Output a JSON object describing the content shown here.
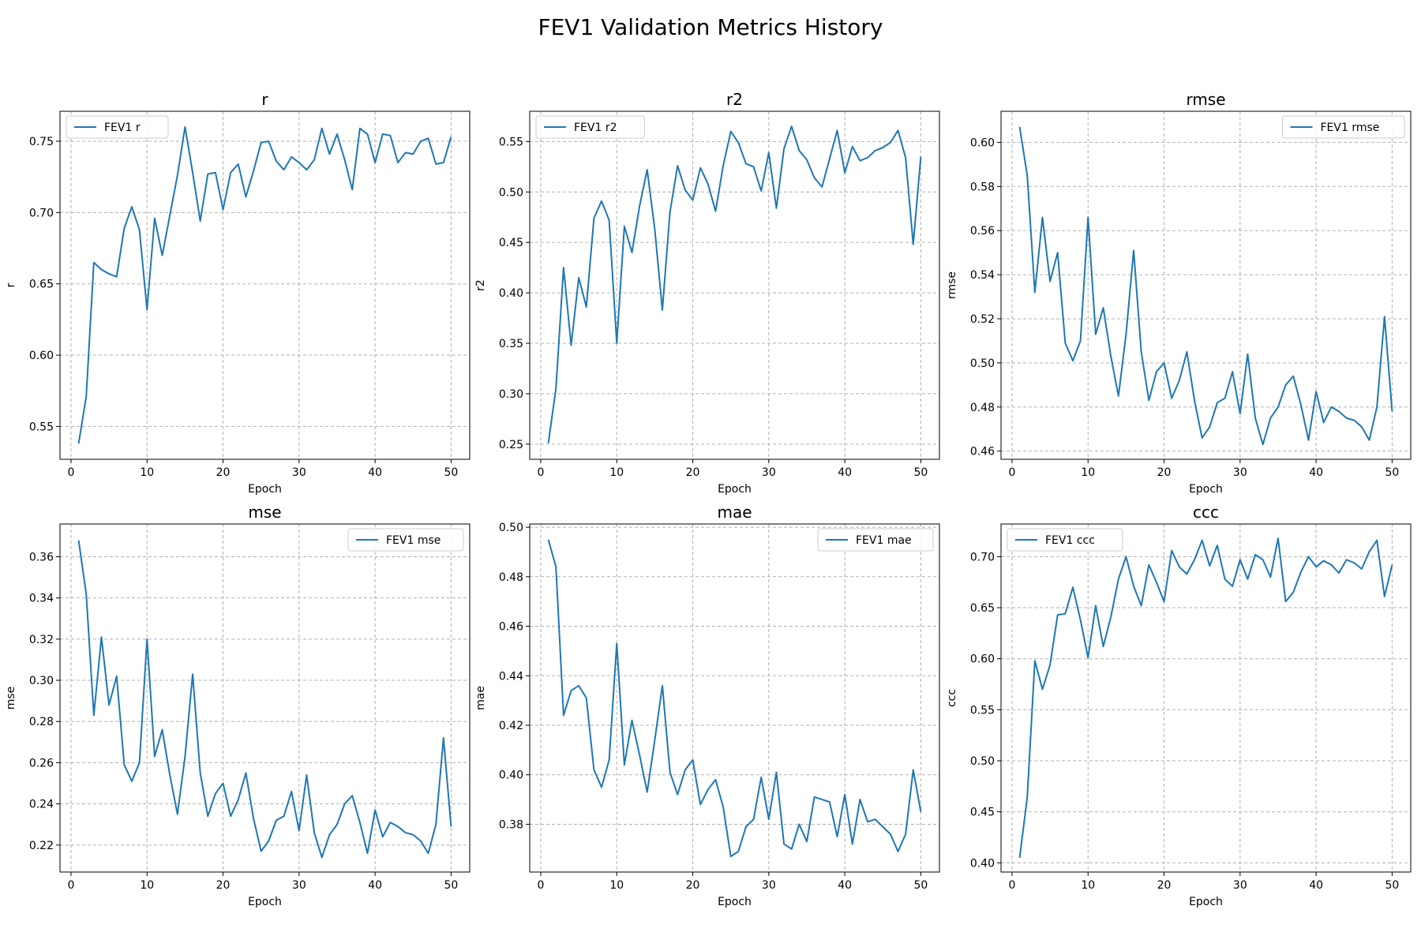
{
  "figure": {
    "title": "FEV1 Validation Metrics History"
  },
  "style": {
    "line_color": "#1f77b4",
    "grid_color": "#b0b0b0",
    "grid": true
  },
  "chart_data": [
    {
      "type": "line",
      "title": "r",
      "xlabel": "Epoch",
      "ylabel": "r",
      "xlim": [
        -1.45,
        52.45
      ],
      "ylim": [
        0.527,
        0.771
      ],
      "xticks": [
        0,
        10,
        20,
        30,
        40,
        50
      ],
      "yticks": [
        0.55,
        0.6,
        0.65,
        0.7,
        0.75
      ],
      "ytick_labels": [
        "0.55",
        "0.60",
        "0.65",
        "0.70",
        "0.75"
      ],
      "legend": "upper-left",
      "series": [
        {
          "name": "FEV1 r",
          "x_start": 1,
          "values": [
            0.538,
            0.571,
            0.665,
            0.66,
            0.657,
            0.655,
            0.689,
            0.704,
            0.688,
            0.632,
            0.696,
            0.67,
            0.698,
            0.726,
            0.76,
            0.728,
            0.694,
            0.727,
            0.728,
            0.702,
            0.728,
            0.734,
            0.711,
            0.729,
            0.749,
            0.75,
            0.736,
            0.73,
            0.739,
            0.735,
            0.73,
            0.737,
            0.759,
            0.741,
            0.755,
            0.737,
            0.716,
            0.759,
            0.755,
            0.735,
            0.755,
            0.754,
            0.735,
            0.742,
            0.741,
            0.75,
            0.752,
            0.734,
            0.735,
            0.753
          ]
        }
      ]
    },
    {
      "type": "line",
      "title": "r2",
      "xlabel": "Epoch",
      "ylabel": "r2",
      "xlim": [
        -1.45,
        52.45
      ],
      "ylim": [
        0.235,
        0.58
      ],
      "xticks": [
        0,
        10,
        20,
        30,
        40,
        50
      ],
      "yticks": [
        0.25,
        0.3,
        0.35,
        0.4,
        0.45,
        0.5,
        0.55
      ],
      "ytick_labels": [
        "0.25",
        "0.30",
        "0.35",
        "0.40",
        "0.45",
        "0.50",
        "0.55"
      ],
      "legend": "upper-left",
      "series": [
        {
          "name": "FEV1 r2",
          "x_start": 1,
          "values": [
            0.251,
            0.305,
            0.425,
            0.348,
            0.415,
            0.386,
            0.474,
            0.491,
            0.472,
            0.35,
            0.466,
            0.44,
            0.486,
            0.522,
            0.463,
            0.383,
            0.48,
            0.526,
            0.502,
            0.492,
            0.524,
            0.508,
            0.481,
            0.526,
            0.56,
            0.549,
            0.528,
            0.525,
            0.501,
            0.539,
            0.484,
            0.543,
            0.565,
            0.541,
            0.532,
            0.514,
            0.505,
            0.533,
            0.561,
            0.519,
            0.545,
            0.531,
            0.534,
            0.541,
            0.544,
            0.549,
            0.561,
            0.534,
            0.448,
            0.535
          ]
        }
      ]
    },
    {
      "type": "line",
      "title": "rmse",
      "xlabel": "Epoch",
      "ylabel": "rmse",
      "xlim": [
        -1.45,
        52.45
      ],
      "ylim": [
        0.4563,
        0.6141
      ],
      "xticks": [
        0,
        10,
        20,
        30,
        40,
        50
      ],
      "yticks": [
        0.46,
        0.48,
        0.5,
        0.52,
        0.54,
        0.56,
        0.58,
        0.6
      ],
      "ytick_labels": [
        "0.46",
        "0.48",
        "0.50",
        "0.52",
        "0.54",
        "0.56",
        "0.58",
        "0.60"
      ],
      "legend": "upper-right",
      "series": [
        {
          "name": "FEV1 rmse",
          "x_start": 1,
          "values": [
            0.607,
            0.585,
            0.532,
            0.566,
            0.537,
            0.55,
            0.509,
            0.501,
            0.51,
            0.566,
            0.513,
            0.525,
            0.503,
            0.485,
            0.513,
            0.551,
            0.505,
            0.483,
            0.496,
            0.5,
            0.484,
            0.492,
            0.505,
            0.483,
            0.466,
            0.471,
            0.482,
            0.484,
            0.496,
            0.477,
            0.504,
            0.475,
            0.463,
            0.475,
            0.48,
            0.49,
            0.494,
            0.481,
            0.465,
            0.487,
            0.473,
            0.48,
            0.478,
            0.475,
            0.474,
            0.471,
            0.465,
            0.48,
            0.521,
            0.478
          ]
        }
      ]
    },
    {
      "type": "line",
      "title": "mse",
      "xlabel": "Epoch",
      "ylabel": "mse",
      "xlim": [
        -1.45,
        52.45
      ],
      "ylim": [
        0.2069,
        0.3759
      ],
      "xticks": [
        0,
        10,
        20,
        30,
        40,
        50
      ],
      "yticks": [
        0.22,
        0.24,
        0.26,
        0.28,
        0.3,
        0.32,
        0.34,
        0.36
      ],
      "ytick_labels": [
        "0.22",
        "0.24",
        "0.26",
        "0.28",
        "0.30",
        "0.32",
        "0.34",
        "0.36"
      ],
      "legend": "upper-right",
      "series": [
        {
          "name": "FEV1 mse",
          "x_start": 1,
          "values": [
            0.368,
            0.342,
            0.283,
            0.321,
            0.288,
            0.302,
            0.259,
            0.251,
            0.26,
            0.32,
            0.263,
            0.276,
            0.254,
            0.235,
            0.263,
            0.303,
            0.255,
            0.234,
            0.245,
            0.25,
            0.234,
            0.242,
            0.255,
            0.233,
            0.217,
            0.222,
            0.232,
            0.234,
            0.246,
            0.227,
            0.254,
            0.226,
            0.214,
            0.225,
            0.23,
            0.24,
            0.244,
            0.231,
            0.216,
            0.237,
            0.224,
            0.231,
            0.229,
            0.226,
            0.225,
            0.222,
            0.216,
            0.23,
            0.272,
            0.229
          ]
        }
      ]
    },
    {
      "type": "line",
      "title": "mae",
      "xlabel": "Epoch",
      "ylabel": "mae",
      "xlim": [
        -1.45,
        52.45
      ],
      "ylim": [
        0.3607,
        0.5013
      ],
      "xticks": [
        0,
        10,
        20,
        30,
        40,
        50
      ],
      "yticks": [
        0.38,
        0.4,
        0.42,
        0.44,
        0.46,
        0.48,
        0.5
      ],
      "ytick_labels": [
        "0.38",
        "0.40",
        "0.42",
        "0.44",
        "0.46",
        "0.48",
        "0.50"
      ],
      "legend": "upper-right",
      "series": [
        {
          "name": "FEV1 mae",
          "x_start": 1,
          "values": [
            0.495,
            0.484,
            0.424,
            0.434,
            0.436,
            0.431,
            0.402,
            0.395,
            0.406,
            0.453,
            0.404,
            0.422,
            0.408,
            0.393,
            0.414,
            0.436,
            0.401,
            0.392,
            0.402,
            0.406,
            0.388,
            0.394,
            0.398,
            0.387,
            0.367,
            0.369,
            0.379,
            0.382,
            0.399,
            0.382,
            0.401,
            0.372,
            0.37,
            0.38,
            0.373,
            0.391,
            0.39,
            0.389,
            0.375,
            0.392,
            0.372,
            0.39,
            0.381,
            0.382,
            0.379,
            0.376,
            0.369,
            0.376,
            0.402,
            0.385
          ]
        }
      ]
    },
    {
      "type": "line",
      "title": "ccc",
      "xlabel": "Epoch",
      "ylabel": "ccc",
      "xlim": [
        -1.45,
        52.45
      ],
      "ylim": [
        0.391,
        0.732
      ],
      "xticks": [
        0,
        10,
        20,
        30,
        40,
        50
      ],
      "yticks": [
        0.4,
        0.45,
        0.5,
        0.55,
        0.6,
        0.65,
        0.7
      ],
      "ytick_labels": [
        "0.40",
        "0.45",
        "0.50",
        "0.55",
        "0.60",
        "0.65",
        "0.70"
      ],
      "legend": "upper-left",
      "series": [
        {
          "name": "FEV1 ccc",
          "x_start": 1,
          "values": [
            0.405,
            0.464,
            0.598,
            0.57,
            0.594,
            0.643,
            0.644,
            0.67,
            0.638,
            0.601,
            0.652,
            0.612,
            0.641,
            0.678,
            0.7,
            0.671,
            0.652,
            0.692,
            0.675,
            0.656,
            0.706,
            0.69,
            0.683,
            0.697,
            0.716,
            0.691,
            0.711,
            0.678,
            0.671,
            0.697,
            0.678,
            0.702,
            0.697,
            0.68,
            0.718,
            0.656,
            0.665,
            0.685,
            0.7,
            0.69,
            0.696,
            0.692,
            0.684,
            0.697,
            0.694,
            0.688,
            0.705,
            0.716,
            0.661,
            0.692
          ]
        }
      ]
    }
  ]
}
